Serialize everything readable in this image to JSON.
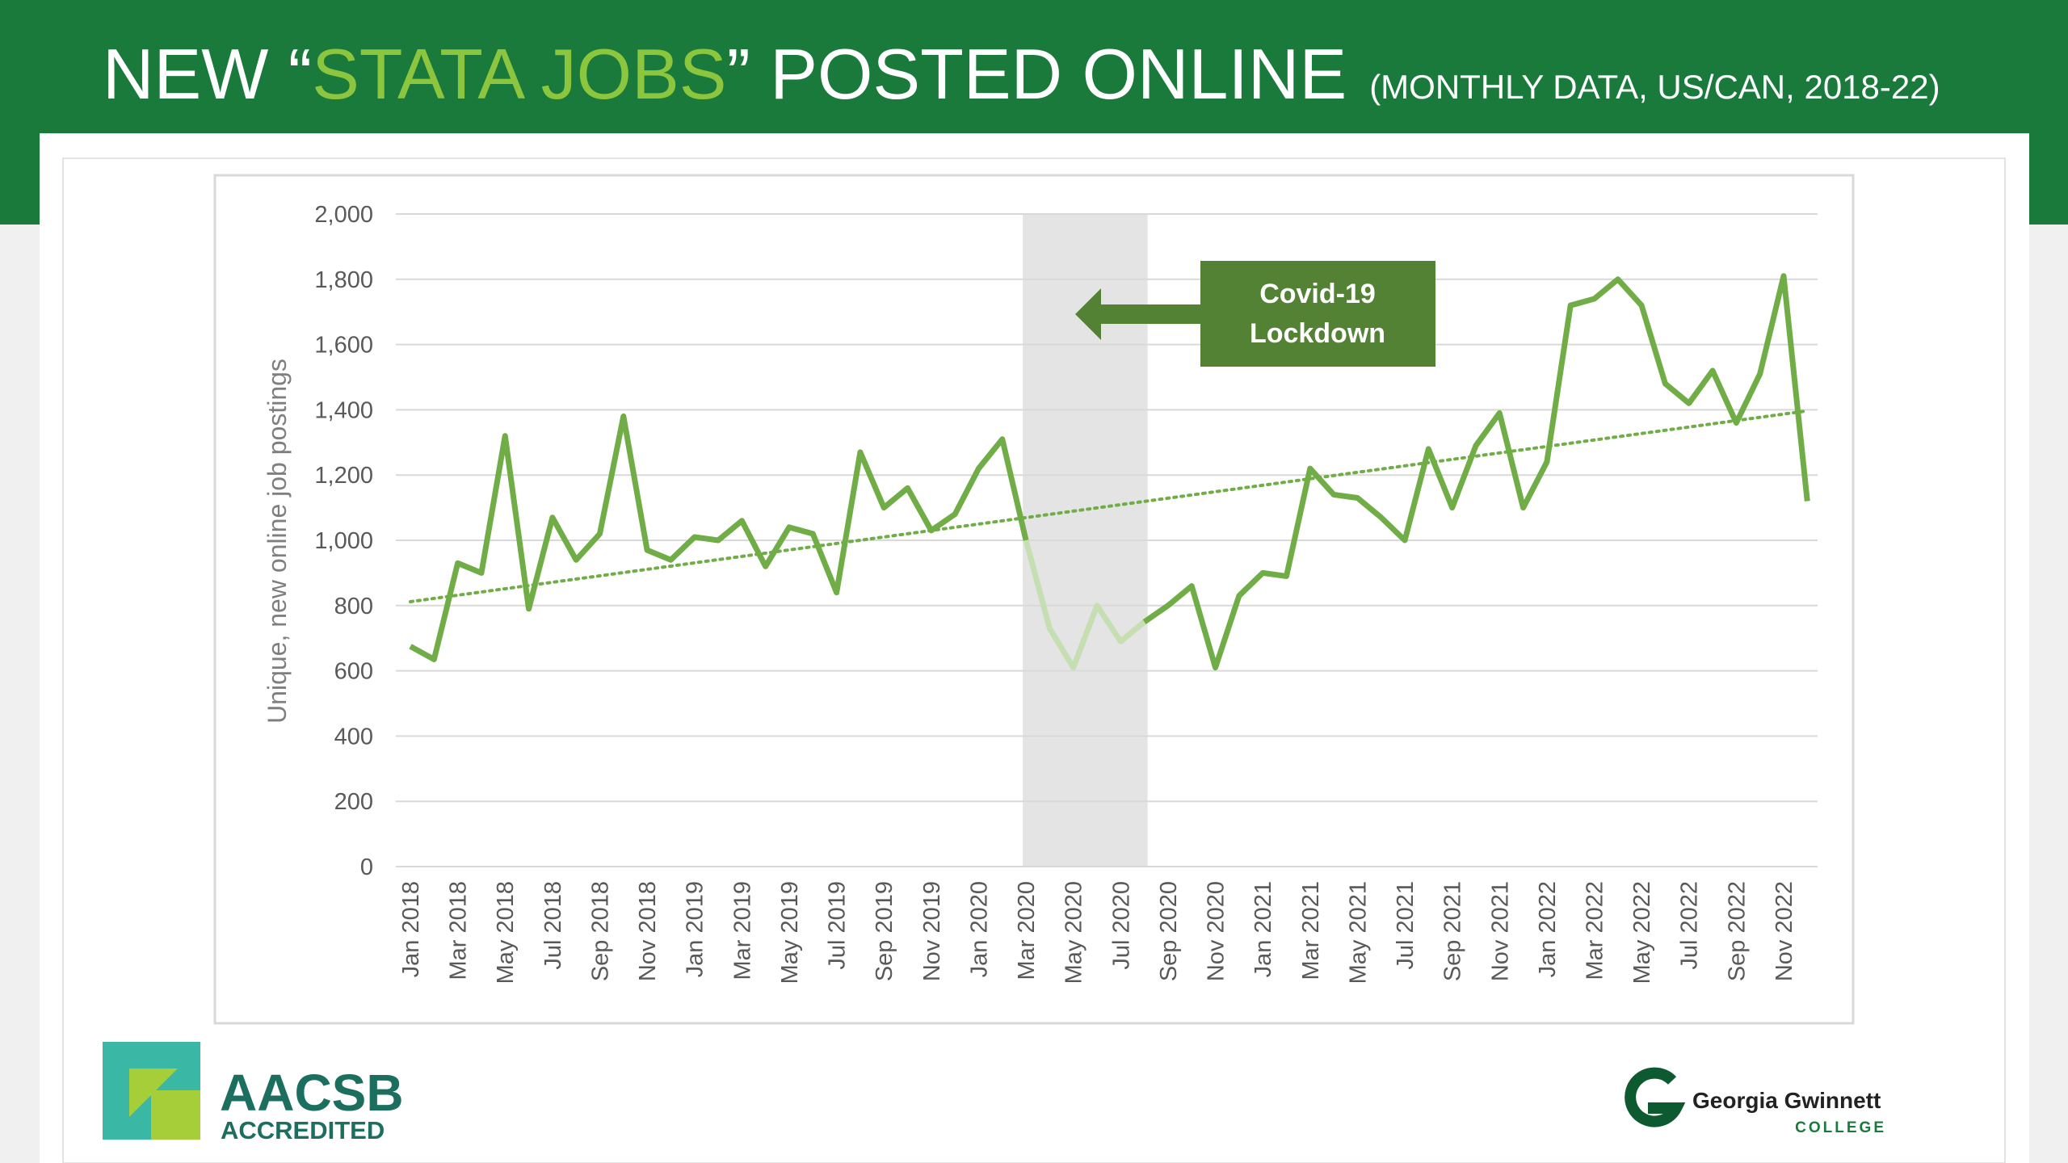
{
  "header": {
    "title_parts": [
      "NEW “",
      "STATA JOBS",
      "” POSTED ONLINE"
    ],
    "subtitle": "(MONTHLY DATA, US/CAN, 2018-22)"
  },
  "chart_data": {
    "type": "line",
    "y_label": "Unique, new online job postings",
    "categories": [
      "Jan 2018",
      null,
      "Mar 2018",
      null,
      "May 2018",
      null,
      "Jul 2018",
      null,
      "Sep 2018",
      null,
      "Nov 2018",
      null,
      "Jan 2019",
      null,
      "Mar 2019",
      null,
      "May 2019",
      null,
      "Jul 2019",
      null,
      "Sep 2019",
      null,
      "Nov 2019",
      null,
      "Jan 2020",
      null,
      "Mar 2020",
      null,
      "May 2020",
      null,
      "Jul 2020",
      null,
      "Sep 2020",
      null,
      "Nov 2020",
      null,
      "Jan 2021",
      null,
      "Mar 2021",
      null,
      "May 2021",
      null,
      "Jul 2021",
      null,
      "Sep 2021",
      null,
      "Nov 2021",
      null,
      "Jan 2022",
      null,
      "Mar 2022",
      null,
      "May 2022",
      null,
      "Jul 2022",
      null,
      "Sep 2022",
      null,
      "Nov 2022",
      null
    ],
    "values": [
      675,
      635,
      930,
      900,
      1320,
      790,
      1070,
      940,
      1020,
      1380,
      970,
      940,
      1010,
      1000,
      1060,
      920,
      1040,
      1020,
      840,
      1270,
      1100,
      1160,
      1030,
      1080,
      1220,
      1310,
      1000,
      730,
      610,
      800,
      690,
      750,
      800,
      860,
      610,
      830,
      900,
      890,
      1220,
      1140,
      1130,
      1070,
      1000,
      1280,
      1100,
      1290,
      1390,
      1100,
      1240,
      1720,
      1740,
      1800,
      1720,
      1480,
      1420,
      1520,
      1360,
      1510,
      1810,
      1120
    ],
    "color": "#70ad47",
    "ylim": [
      0,
      2000
    ],
    "yticks": [
      0,
      200,
      400,
      600,
      800,
      {
        "value": 1000,
        "label": "1,000"
      },
      {
        "value": 1200,
        "label": "1,200"
      },
      {
        "value": 1400,
        "label": "1,400"
      },
      {
        "value": 1600,
        "label": "1,600"
      },
      {
        "value": 1800,
        "label": "1,800"
      },
      {
        "value": 2000,
        "label": "2,000"
      }
    ],
    "grid": true,
    "trendline": true,
    "annotation": [
      "Covid-19",
      "Lockdown"
    ]
  },
  "footer": {
    "aacsb": "AACSB",
    "accredited": "ACCREDITED",
    "college_name": "Georgia Gwinnett",
    "college": "COLLEGE"
  }
}
